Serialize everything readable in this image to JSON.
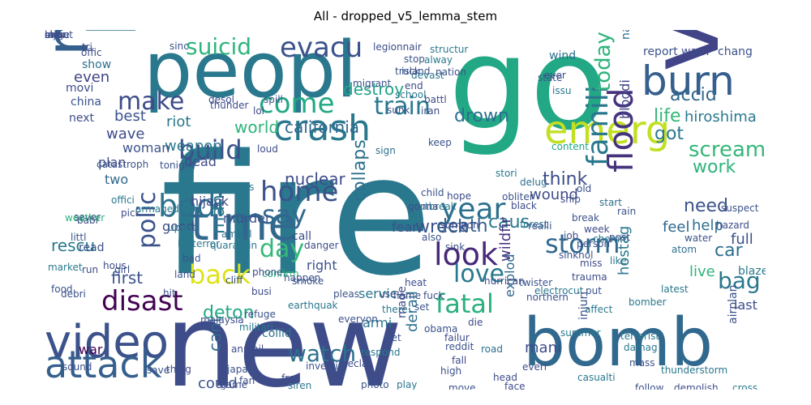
{
  "title": "All - dropped_v5_lemma_stem",
  "words": [
    {
      "t": "fire",
      "c": "#2a788e"
    },
    {
      "t": "new",
      "c": "#3e4c8a"
    },
    {
      "t": "go",
      "c": "#22a884"
    },
    {
      "t": "peopl",
      "c": "#2a788e"
    },
    {
      "t": "kill",
      "c": "#2d708e"
    },
    {
      "t": "news",
      "c": "#355f8d"
    },
    {
      "t": "via",
      "c": "#414487"
    },
    {
      "t": "bomb",
      "c": "#31688e"
    },
    {
      "t": "video",
      "c": "#3b528b"
    },
    {
      "t": "attack",
      "c": "#355f8d"
    },
    {
      "t": "time",
      "c": "#31688e"
    },
    {
      "t": "emerg",
      "c": "#c2df23"
    },
    {
      "t": "crash",
      "c": "#2a788e"
    },
    {
      "t": "burn",
      "c": "#355f8d"
    },
    {
      "t": "look",
      "c": "#482878"
    },
    {
      "t": "disast",
      "c": "#440154"
    },
    {
      "t": "fatal",
      "c": "#2ab07f"
    },
    {
      "t": "flood",
      "c": "#46337e"
    },
    {
      "t": "famili",
      "c": "#2a788e"
    },
    {
      "t": "evacu",
      "c": "#3b528b"
    },
    {
      "t": "suicid",
      "c": "#2fb47c"
    },
    {
      "t": "make",
      "c": "#3e4c8a"
    },
    {
      "t": "come",
      "c": "#22a884"
    },
    {
      "t": "train",
      "c": "#2a788e"
    },
    {
      "t": "build",
      "c": "#3b528b"
    },
    {
      "t": "bodi",
      "c": "#2d708e"
    },
    {
      "t": "home",
      "c": "#3b528b"
    },
    {
      "t": "say",
      "c": "#31688e"
    },
    {
      "t": "day",
      "c": "#35b779"
    },
    {
      "t": "back",
      "c": "#dde318"
    },
    {
      "t": "polic",
      "c": "#3b528b"
    },
    {
      "t": "year",
      "c": "#2d708e"
    },
    {
      "t": "storm",
      "c": "#31688e"
    },
    {
      "t": "love",
      "c": "#2a788e"
    },
    {
      "t": "watch",
      "c": "#2d708e"
    },
    {
      "t": "bag",
      "c": "#2a788e"
    },
    {
      "t": "scream",
      "c": "#35b779"
    },
    {
      "t": "world",
      "c": "#2fb47c"
    },
    {
      "t": "california",
      "c": "#31688e"
    },
    {
      "t": "life",
      "c": "#35b779"
    },
    {
      "t": "got",
      "c": "#2a788e"
    },
    {
      "t": "today",
      "c": "#2fb47c"
    },
    {
      "t": "drown",
      "c": "#2d708e"
    },
    {
      "t": "nuclear",
      "c": "#3e4c8a"
    },
    {
      "t": "collaps",
      "c": "#2d708e"
    },
    {
      "t": "wreck",
      "c": "#3b528b"
    },
    {
      "t": "death",
      "c": "#355f8d"
    },
    {
      "t": "caus",
      "c": "#2a788e"
    },
    {
      "t": "work",
      "c": "#2fb47c"
    },
    {
      "t": "need",
      "c": "#3b528b"
    },
    {
      "t": "car",
      "c": "#2d708e"
    },
    {
      "t": "first",
      "c": "#3b528b"
    },
    {
      "t": "man",
      "c": "#2a788e"
    },
    {
      "t": "derail",
      "c": "#2d708e"
    },
    {
      "t": "cant",
      "c": "#31688e"
    },
    {
      "t": "deton",
      "c": "#22a884"
    },
    {
      "t": "think",
      "c": "#3e4c8a"
    },
    {
      "t": "accid",
      "c": "#31688e"
    },
    {
      "t": "destroy",
      "c": "#20a386"
    },
    {
      "t": "riot",
      "c": "#2a788e"
    },
    {
      "t": "best",
      "c": "#3b528b"
    },
    {
      "t": "wave",
      "c": "#3e4c8a"
    },
    {
      "t": "even",
      "c": "#414487"
    },
    {
      "t": "weapon",
      "c": "#2a788e"
    },
    {
      "t": "woman",
      "c": "#3b528b"
    },
    {
      "t": "plan",
      "c": "#3e4c8a"
    },
    {
      "t": "two",
      "c": "#31688e"
    },
    {
      "t": "hijack",
      "c": "#3e4c8a"
    },
    {
      "t": "murder",
      "c": "#3b528b"
    },
    {
      "t": "good",
      "c": "#3e4c8a"
    },
    {
      "t": "rescu",
      "c": "#2a788e"
    },
    {
      "t": "dead",
      "c": "#3e4c8a"
    },
    {
      "t": "fear",
      "c": "#3b528b"
    },
    {
      "t": "feel",
      "c": "#31688e"
    },
    {
      "t": "help",
      "c": "#2d708e"
    },
    {
      "t": "live",
      "c": "#2fb47c"
    },
    {
      "t": "full",
      "c": "#3b528b"
    },
    {
      "t": "last",
      "c": "#3e4c8a"
    },
    {
      "t": "servic",
      "c": "#2a788e"
    },
    {
      "t": "surviv",
      "c": "#2d708e"
    },
    {
      "t": "hostag",
      "c": "#2a788e"
    },
    {
      "t": "hiroshima",
      "c": "#2a788e"
    },
    {
      "t": "wildfir",
      "c": "#46337e"
    },
    {
      "t": "could",
      "c": "#3b528b"
    },
    {
      "t": "mani",
      "c": "#3e4c8a"
    },
    {
      "t": "wound",
      "c": "#3e4c8a"
    },
    {
      "t": "explod",
      "c": "#31688e"
    },
    {
      "t": "bloodi",
      "c": "#414487"
    },
    {
      "t": "armi",
      "c": "#2a788e"
    },
    {
      "t": "right",
      "c": "#3b528b"
    },
    {
      "t": "call",
      "c": "#3e4c8a"
    },
    {
      "t": "read",
      "c": "#3b528b"
    },
    {
      "t": "war",
      "c": "#440154"
    },
    {
      "t": "collid",
      "c": "#2d708e"
    },
    {
      "t": "blaze",
      "c": "#2a788e"
    },
    {
      "t": "wind",
      "c": "#2d708e"
    },
    {
      "t": "report",
      "c": "#3b528b"
    },
    {
      "t": "warn",
      "c": "#3e4c8a"
    },
    {
      "t": "chang",
      "c": "#3b528b"
    },
    {
      "t": "natur",
      "c": "#31688e"
    },
    {
      "t": "movi",
      "c": "#3e4c8a"
    },
    {
      "t": "china",
      "c": "#3b528b"
    },
    {
      "t": "next",
      "c": "#3e4c8a"
    },
    {
      "t": "show",
      "c": "#2d708e"
    },
    {
      "t": "catastroph",
      "c": "#3b528b"
    },
    {
      "t": "tonight",
      "c": "#3b528b"
    },
    {
      "t": "lol",
      "c": "#3e4c8a"
    },
    {
      "t": "sign",
      "c": "#2d708e"
    },
    {
      "t": "keep",
      "c": "#3b528b"
    },
    {
      "t": "issu",
      "c": "#2a788e"
    },
    {
      "t": "state",
      "c": "#3b528b"
    },
    {
      "t": "stori",
      "c": "#2a788e"
    },
    {
      "t": "content",
      "c": "#20a386"
    },
    {
      "t": "delug",
      "c": "#2d708e"
    },
    {
      "t": "obliter",
      "c": "#3b528b"
    },
    {
      "t": "releas",
      "c": "#2a788e"
    },
    {
      "t": "ambul",
      "c": "#2d708e"
    },
    {
      "t": "quarantin",
      "c": "#2a788e"
    },
    {
      "t": "bioterror",
      "c": "#2a788e"
    },
    {
      "t": "land",
      "c": "#3b528b"
    },
    {
      "t": "bad",
      "c": "#3b528b"
    },
    {
      "t": "hous",
      "c": "#3e4c8a"
    },
    {
      "t": "militari",
      "c": "#2a788e"
    },
    {
      "t": "confirm",
      "c": "#2fb47c"
    },
    {
      "t": "everyon",
      "c": "#3b528b"
    },
    {
      "t": "smoke",
      "c": "#3b528b"
    },
    {
      "t": "pleas",
      "c": "#3b528b"
    },
    {
      "t": "heat",
      "c": "#3e4c8a"
    },
    {
      "t": "flame",
      "c": "#3b528b"
    },
    {
      "t": "there",
      "c": "#2a788e"
    },
    {
      "t": "hurrican",
      "c": "#3e4c8a"
    },
    {
      "t": "electrocut",
      "c": "#2a788e"
    },
    {
      "t": "injuri",
      "c": "#3b528b"
    },
    {
      "t": "terrorist",
      "c": "#2a788e"
    },
    {
      "t": "bomber",
      "c": "#2a788e"
    },
    {
      "t": "obama",
      "c": "#3b528b"
    },
    {
      "t": "earthquak",
      "c": "#2a788e"
    },
    {
      "t": "annihil",
      "c": "#3e4c8a"
    },
    {
      "t": "japan",
      "c": "#3b528b"
    },
    {
      "t": "malaysia",
      "c": "#3e4c8a"
    },
    {
      "t": "sound",
      "c": "#3b528b"
    },
    {
      "t": "thing",
      "c": "#3e4c8a"
    },
    {
      "t": "save",
      "c": "#3b528b"
    },
    {
      "t": "game",
      "c": "#3e4c8a"
    },
    {
      "t": "siren",
      "c": "#2a788e"
    },
    {
      "t": "photo",
      "c": "#3b528b"
    },
    {
      "t": "play",
      "c": "#2a788e"
    },
    {
      "t": "head",
      "c": "#3e4c8a"
    },
    {
      "t": "move",
      "c": "#3b528b"
    },
    {
      "t": "face",
      "c": "#3e4c8a"
    },
    {
      "t": "casualti",
      "c": "#2a788e"
    },
    {
      "t": "follow",
      "c": "#3b528b"
    },
    {
      "t": "demolish",
      "c": "#3e4c8a"
    },
    {
      "t": "cross",
      "c": "#2a788e"
    },
    {
      "t": "airplan",
      "c": "#3b528b"
    },
    {
      "t": "thunderstorm",
      "c": "#2a788e"
    },
    {
      "t": "mass",
      "c": "#3b528b"
    },
    {
      "t": "everi",
      "c": "#3e4c8a"
    },
    {
      "t": "road",
      "c": "#2d708e"
    },
    {
      "t": "fall",
      "c": "#3e4c8a"
    },
    {
      "t": "high",
      "c": "#3b528b"
    },
    {
      "t": "die",
      "c": "#3e4c8a"
    },
    {
      "t": "northern",
      "c": "#3b528b"
    },
    {
      "t": "affect",
      "c": "#2a788e"
    },
    {
      "t": "damag",
      "c": "#2a788e"
    },
    {
      "t": "suspect",
      "c": "#3b528b"
    },
    {
      "t": "hazard",
      "c": "#3e4c8a"
    },
    {
      "t": "atom",
      "c": "#2d708e"
    },
    {
      "t": "break",
      "c": "#3b528b"
    },
    {
      "t": "job",
      "c": "#3e4c8a"
    },
    {
      "t": "forest",
      "c": "#2a788e"
    },
    {
      "t": "sink",
      "c": "#3b528b"
    },
    {
      "t": "hope",
      "c": "#3e4c8a"
    },
    {
      "t": "child",
      "c": "#3b528b"
    },
    {
      "t": "black",
      "c": "#3e4c8a"
    },
    {
      "t": "realli",
      "c": "#3b528b"
    },
    {
      "t": "start",
      "c": "#2d708e"
    },
    {
      "t": "week",
      "c": "#3e4c8a"
    },
    {
      "t": "old",
      "c": "#3b528b"
    },
    {
      "t": "like",
      "c": "#2a788e"
    },
    {
      "t": "miss",
      "c": "#3e4c8a"
    },
    {
      "t": "water",
      "c": "#3b528b"
    },
    {
      "t": "post",
      "c": "#3e4c8a"
    },
    {
      "t": "latest",
      "c": "#2a788e"
    },
    {
      "t": "put",
      "c": "#3b528b"
    },
    {
      "t": "danger",
      "c": "#3e4c8a"
    },
    {
      "t": "girl",
      "c": "#3b528b"
    },
    {
      "t": "offici",
      "c": "#2a788e"
    },
    {
      "t": "sever",
      "c": "#3e4c8a"
    },
    {
      "t": "littl",
      "c": "#3b528b"
    },
    {
      "t": "market",
      "c": "#2a788e"
    },
    {
      "t": "debri",
      "c": "#3b528b"
    },
    {
      "t": "babi",
      "c": "#3e4c8a"
    },
    {
      "t": "food",
      "c": "#3b528b"
    },
    {
      "t": "weather",
      "c": "#2fb47c"
    },
    {
      "t": "run",
      "c": "#3e4c8a"
    },
    {
      "t": "hit",
      "c": "#3b528b"
    },
    {
      "t": "pick",
      "c": "#3e4c8a"
    },
    {
      "t": "updat",
      "c": "#2a788e"
    },
    {
      "t": "sinc",
      "c": "#3b528b"
    },
    {
      "t": "legionnair",
      "c": "#3e4c8a"
    },
    {
      "t": "structur",
      "c": "#2a788e"
    },
    {
      "t": "stop",
      "c": "#3b528b"
    },
    {
      "t": "devast",
      "c": "#2a788e"
    },
    {
      "t": "end",
      "c": "#3e4c8a"
    },
    {
      "t": "use",
      "c": "#3b528b"
    },
    {
      "t": "fuck",
      "c": "#3e4c8a"
    },
    {
      "t": "set",
      "c": "#3b528b"
    },
    {
      "t": "made",
      "c": "#3e4c8a"
    },
    {
      "t": "get",
      "c": "#3b528b"
    },
    {
      "t": "respond",
      "c": "#2a788e"
    },
    {
      "t": "declar",
      "c": "#3e4c8a"
    },
    {
      "t": "investig",
      "c": "#3b528b"
    },
    {
      "t": "free",
      "c": "#3e4c8a"
    },
    {
      "t": "fan",
      "c": "#3b528b"
    },
    {
      "t": "ever",
      "c": "#3e4c8a"
    },
    {
      "t": "nation",
      "c": "#3b528b"
    },
    {
      "t": "summer",
      "c": "#2a788e"
    },
    {
      "t": "trauma",
      "c": "#3e4c8a"
    },
    {
      "t": "twister",
      "c": "#3b528b"
    },
    {
      "t": "failur",
      "c": "#3e4c8a"
    },
    {
      "t": "reddit",
      "c": "#3b528b"
    },
    {
      "t": "outbreak",
      "c": "#2a788e"
    },
    {
      "t": "someon",
      "c": "#3e4c8a"
    },
    {
      "t": "also",
      "c": "#3b528b"
    },
    {
      "t": "gonna",
      "c": "#3e4c8a"
    },
    {
      "t": "island",
      "c": "#3b528b"
    },
    {
      "t": "school",
      "c": "#2a788e"
    },
    {
      "t": "battl",
      "c": "#3e4c8a"
    },
    {
      "t": "sunk",
      "c": "#3b528b"
    },
    {
      "t": "tri",
      "c": "#3e4c8a"
    },
    {
      "t": "migrant",
      "c": "#3b528b"
    },
    {
      "t": "offic",
      "c": "#3e4c8a"
    },
    {
      "t": "rain",
      "c": "#3b528b"
    },
    {
      "t": "thunder",
      "c": "#3e4c8a"
    },
    {
      "t": "cliff",
      "c": "#3b528b"
    },
    {
      "t": "busi",
      "c": "#3e4c8a"
    },
    {
      "t": "refuge",
      "c": "#3b528b"
    },
    {
      "t": "armageddon",
      "c": "#2a788e"
    },
    {
      "t": "loud",
      "c": "#3e4c8a"
    },
    {
      "t": "person",
      "c": "#3b528b"
    },
    {
      "t": "chemic",
      "c": "#2a788e"
    },
    {
      "t": "ship",
      "c": "#3e4c8a"
    },
    {
      "t": "sinkhol",
      "c": "#3b528b"
    },
    {
      "t": "iran",
      "c": "#3e4c8a"
    },
    {
      "t": "spill",
      "c": "#3b528b"
    },
    {
      "t": "desol",
      "c": "#3e4c8a"
    },
    {
      "t": "alway",
      "c": "#2a788e"
    },
    {
      "t": "truck",
      "c": "#3b528b"
    },
    {
      "t": "phone",
      "c": "#3e4c8a"
    },
    {
      "t": "happen",
      "c": "#3b528b"
    },
    {
      "t": "minut",
      "c": "#3e4c8a"
    },
    {
      "t": "injur",
      "c": "#3b528b"
    },
    {
      "t": "shit",
      "c": "#3e4c8a"
    },
    {
      "t": "close",
      "c": "#3b528b"
    },
    {
      "t": "brig",
      "c": "#3e4c8a"
    },
    {
      "t": "order",
      "c": "#3b528b"
    },
    {
      "t": "bu",
      "c": "#3e4c8a"
    },
    {
      "t": "anoth",
      "c": "#3b528b"
    }
  ]
}
